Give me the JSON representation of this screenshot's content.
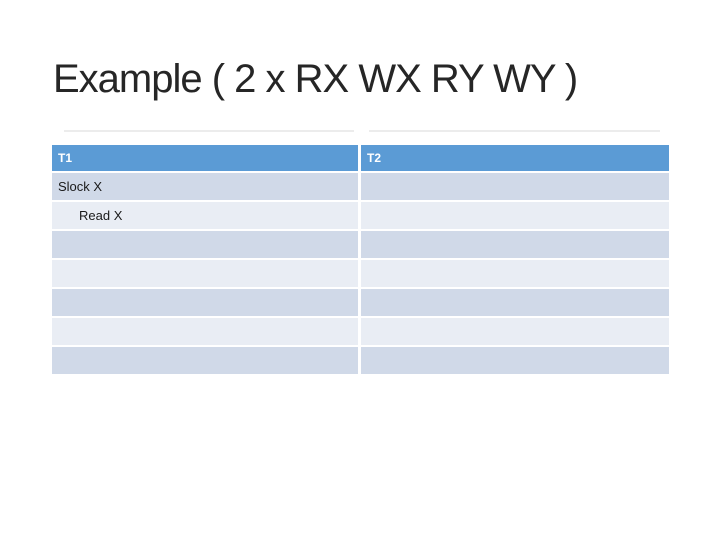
{
  "slide": {
    "title": "Example ( 2 x RX WX RY WY )"
  },
  "table": {
    "columns": [
      {
        "label": "T1"
      },
      {
        "label": "T2"
      }
    ],
    "rows": [
      {
        "t1": "Slock X",
        "t2": "",
        "indent": "0"
      },
      {
        "t1": "Read X",
        "t2": "",
        "indent": "1"
      },
      {
        "t1": "",
        "t2": ""
      },
      {
        "t1": "",
        "t2": ""
      },
      {
        "t1": "",
        "t2": ""
      },
      {
        "t1": "",
        "t2": ""
      },
      {
        "t1": "",
        "t2": ""
      }
    ]
  },
  "colors": {
    "background": "#FFFFFF",
    "title_text": "#262626",
    "table_header_bg": "#5B9BD5",
    "table_header_text": "#FFFFFF",
    "band_dark": "#D0D9E8",
    "band_light": "#E9EDF4",
    "body_text": "#1A1A1A",
    "faint_rule": "#ECECEC"
  }
}
